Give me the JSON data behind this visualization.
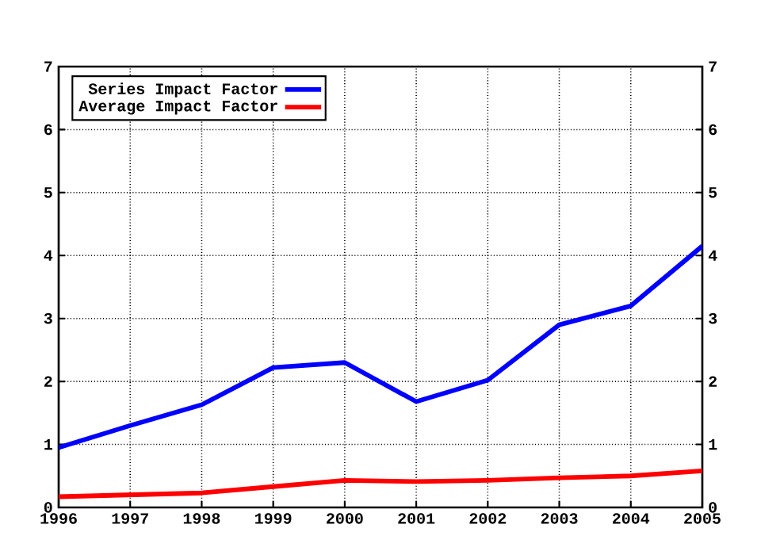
{
  "chart_data": {
    "type": "line",
    "x": [
      1996,
      1997,
      1998,
      1999,
      2000,
      2001,
      2002,
      2003,
      2004,
      2005
    ],
    "series": [
      {
        "name": "Series Impact Factor",
        "color": "#0000ff",
        "values": [
          0.95,
          1.3,
          1.63,
          2.22,
          2.3,
          1.68,
          2.02,
          2.9,
          3.2,
          4.15
        ]
      },
      {
        "name": "Average Impact Factor",
        "color": "#ff0000",
        "values": [
          0.17,
          0.2,
          0.23,
          0.33,
          0.43,
          0.41,
          0.43,
          0.47,
          0.5,
          0.58
        ]
      }
    ],
    "xlim": [
      1996,
      2005
    ],
    "xticks": [
      1996,
      1997,
      1998,
      1999,
      2000,
      2001,
      2002,
      2003,
      2004,
      2005
    ],
    "ylim": [
      0,
      7
    ],
    "yticks": [
      0,
      1,
      2,
      3,
      4,
      5,
      6,
      7
    ],
    "y2lim": [
      0,
      7
    ],
    "y2ticks": [
      0,
      1,
      2,
      3,
      4,
      5,
      6,
      7
    ],
    "grid": true,
    "legend": "top left",
    "marker": "none",
    "line_style": "solid"
  }
}
